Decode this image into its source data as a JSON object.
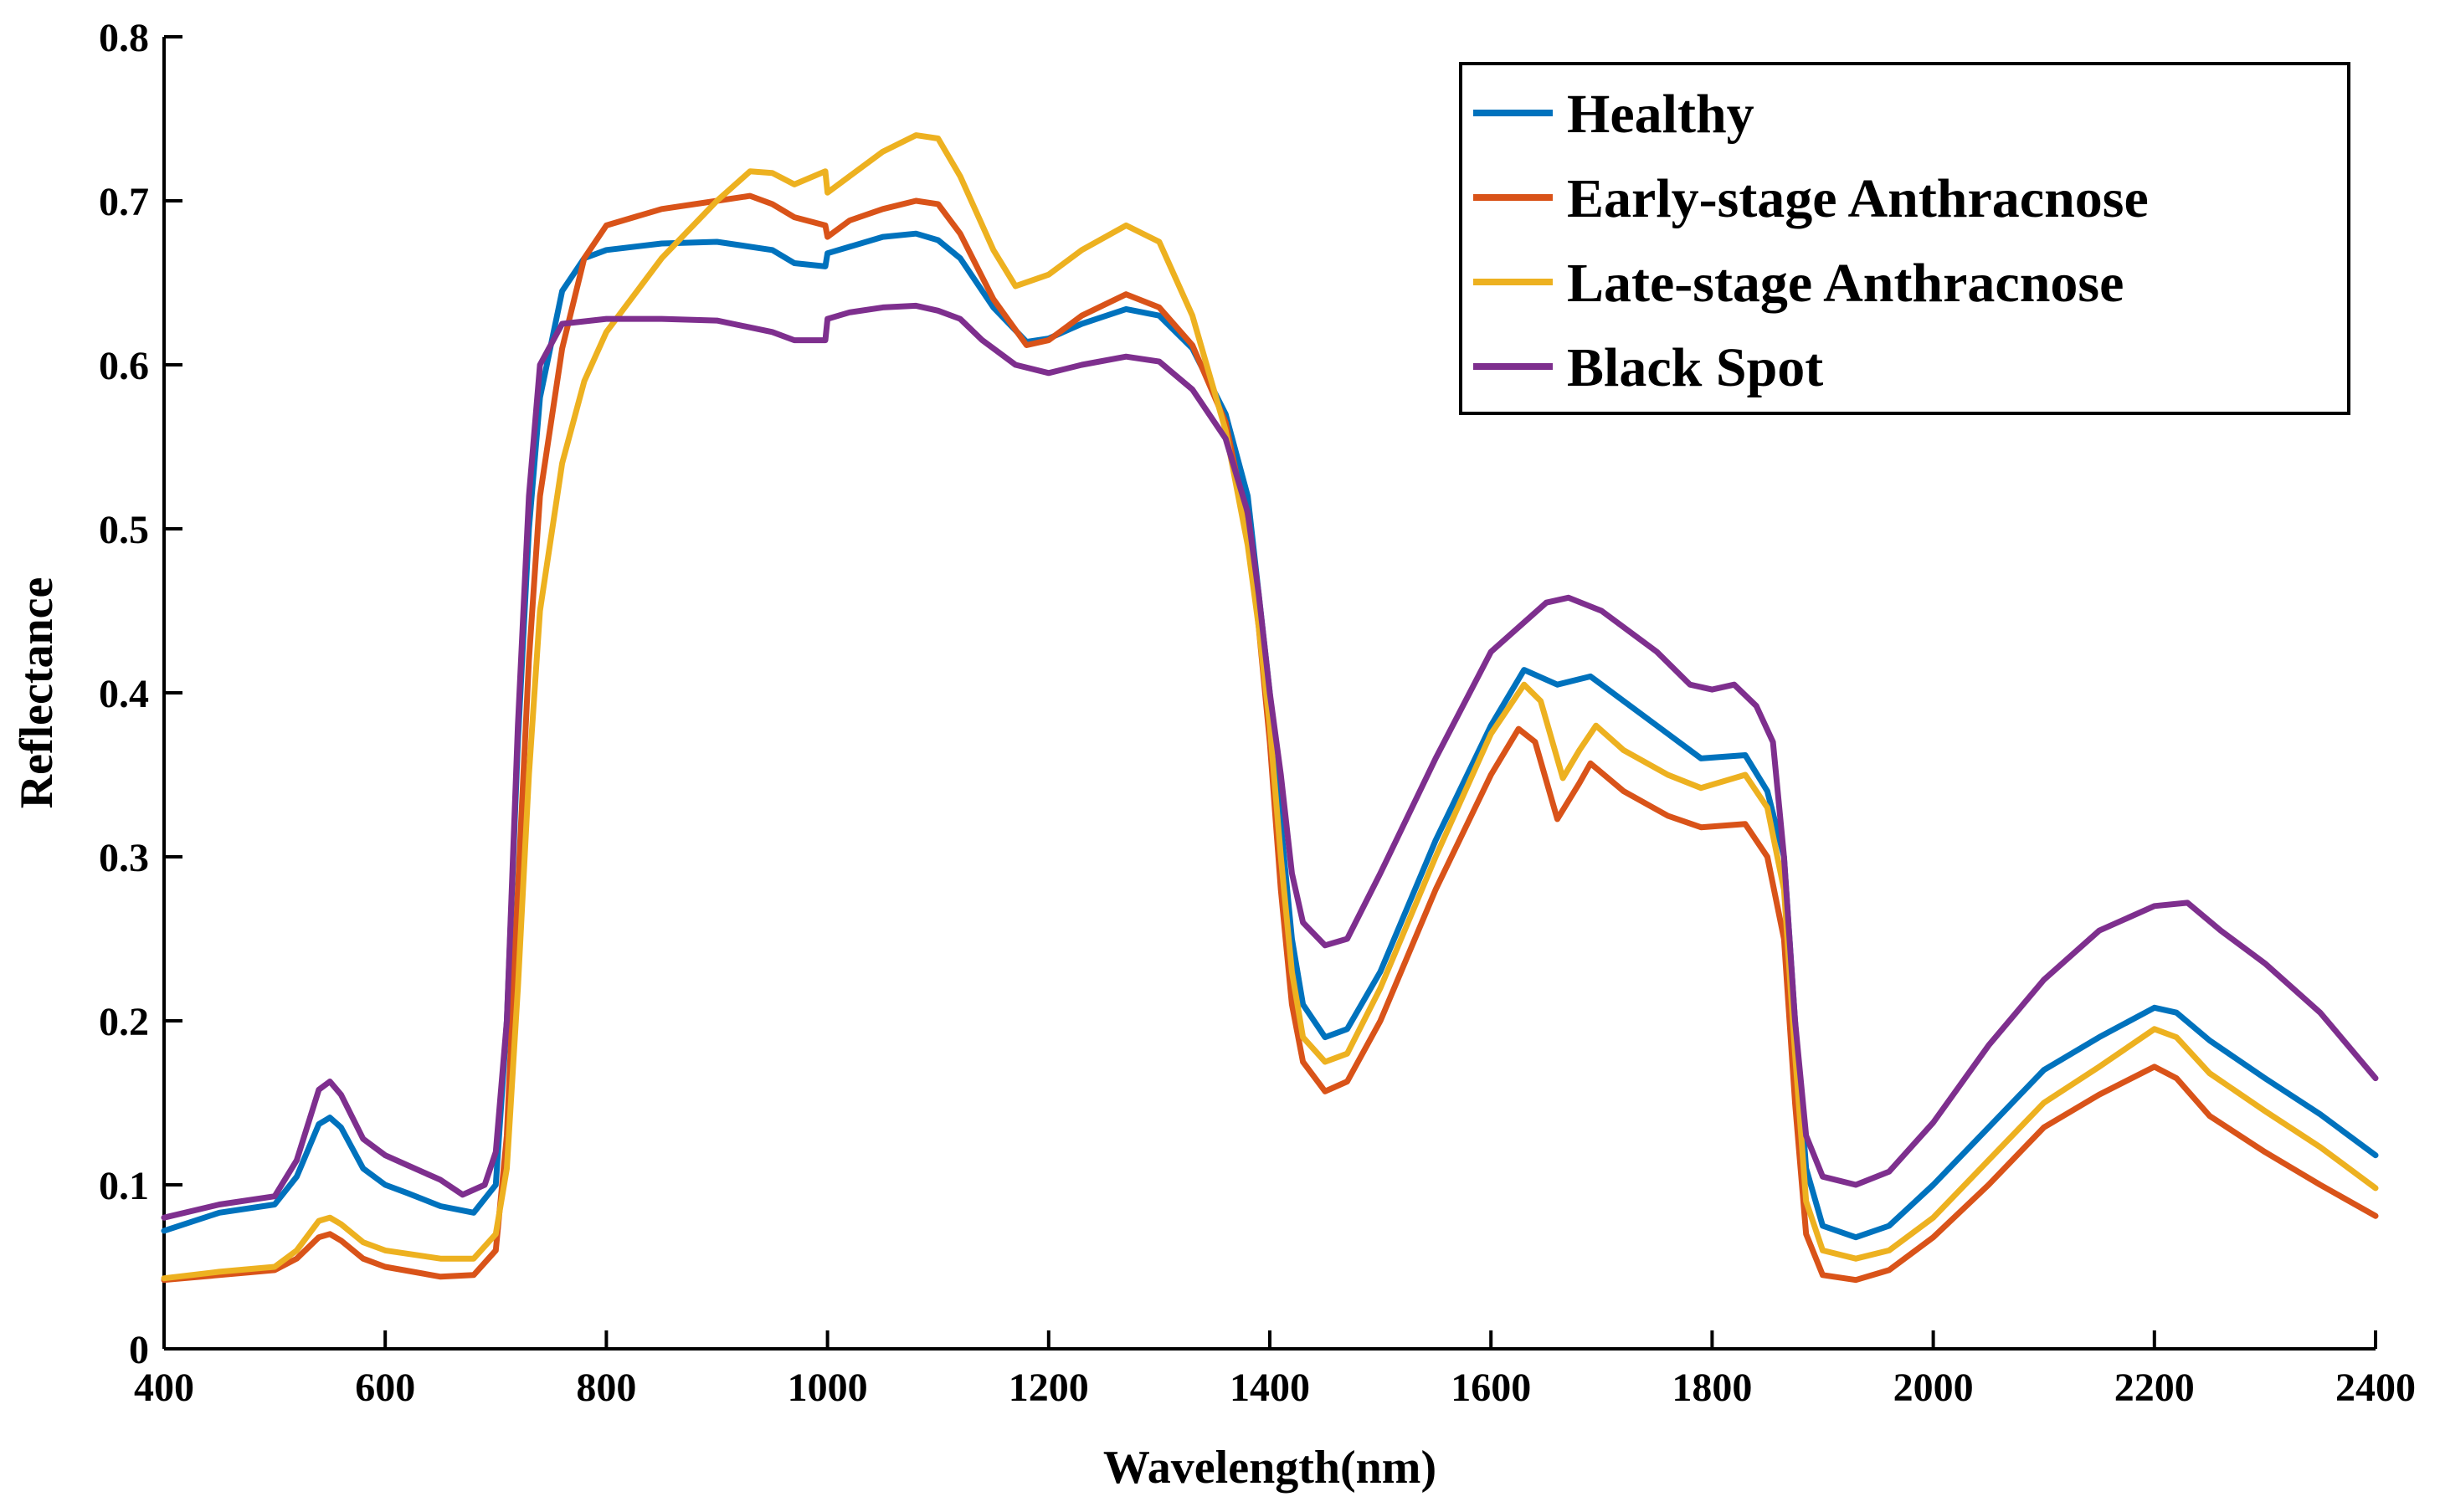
{
  "chart_data": {
    "type": "line",
    "title": "",
    "xlabel": "Wavelength(nm)",
    "ylabel": "Reflectance",
    "xlim": [
      400,
      2400
    ],
    "ylim": [
      0,
      0.8
    ],
    "xticks": [
      400,
      600,
      800,
      1000,
      1200,
      1400,
      1600,
      1800,
      2000,
      2200,
      2400
    ],
    "xtick_labels": [
      "400",
      "600",
      "800",
      "1000",
      "1200",
      "1400",
      "1600",
      "1800",
      "2000",
      "2200",
      "2400"
    ],
    "yticks": [
      0,
      0.1,
      0.2,
      0.3,
      0.4,
      0.5,
      0.6,
      0.7,
      0.8
    ],
    "ytick_labels": [
      "0",
      "0.1",
      "0.2",
      "0.3",
      "0.4",
      "0.5",
      "0.6",
      "0.7",
      "0.8"
    ],
    "grid": false,
    "legend_position": "top-right",
    "series": [
      {
        "name": "Healthy",
        "color": "#0072BD",
        "points": [
          [
            400,
            0.072
          ],
          [
            450,
            0.083
          ],
          [
            500,
            0.088
          ],
          [
            520,
            0.105
          ],
          [
            540,
            0.137
          ],
          [
            550,
            0.141
          ],
          [
            560,
            0.135
          ],
          [
            580,
            0.11
          ],
          [
            600,
            0.1
          ],
          [
            620,
            0.095
          ],
          [
            650,
            0.087
          ],
          [
            680,
            0.083
          ],
          [
            700,
            0.1
          ],
          [
            710,
            0.2
          ],
          [
            720,
            0.37
          ],
          [
            730,
            0.5
          ],
          [
            740,
            0.58
          ],
          [
            760,
            0.645
          ],
          [
            780,
            0.665
          ],
          [
            800,
            0.67
          ],
          [
            850,
            0.674
          ],
          [
            900,
            0.675
          ],
          [
            950,
            0.67
          ],
          [
            970,
            0.662
          ],
          [
            998,
            0.66
          ],
          [
            1000,
            0.668
          ],
          [
            1020,
            0.672
          ],
          [
            1050,
            0.678
          ],
          [
            1080,
            0.68
          ],
          [
            1100,
            0.676
          ],
          [
            1120,
            0.665
          ],
          [
            1150,
            0.635
          ],
          [
            1180,
            0.614
          ],
          [
            1200,
            0.616
          ],
          [
            1230,
            0.625
          ],
          [
            1270,
            0.634
          ],
          [
            1300,
            0.63
          ],
          [
            1330,
            0.61
          ],
          [
            1360,
            0.57
          ],
          [
            1380,
            0.52
          ],
          [
            1390,
            0.46
          ],
          [
            1400,
            0.4
          ],
          [
            1410,
            0.32
          ],
          [
            1420,
            0.25
          ],
          [
            1430,
            0.21
          ],
          [
            1450,
            0.19
          ],
          [
            1470,
            0.195
          ],
          [
            1500,
            0.23
          ],
          [
            1550,
            0.31
          ],
          [
            1600,
            0.38
          ],
          [
            1630,
            0.414
          ],
          [
            1660,
            0.405
          ],
          [
            1690,
            0.41
          ],
          [
            1720,
            0.395
          ],
          [
            1760,
            0.375
          ],
          [
            1790,
            0.36
          ],
          [
            1830,
            0.362
          ],
          [
            1850,
            0.34
          ],
          [
            1865,
            0.3
          ],
          [
            1875,
            0.2
          ],
          [
            1885,
            0.11
          ],
          [
            1900,
            0.075
          ],
          [
            1930,
            0.068
          ],
          [
            1960,
            0.075
          ],
          [
            2000,
            0.1
          ],
          [
            2050,
            0.135
          ],
          [
            2100,
            0.17
          ],
          [
            2150,
            0.19
          ],
          [
            2200,
            0.208
          ],
          [
            2220,
            0.205
          ],
          [
            2250,
            0.188
          ],
          [
            2300,
            0.165
          ],
          [
            2350,
            0.143
          ],
          [
            2400,
            0.118
          ]
        ]
      },
      {
        "name": "Early-stage Anthracnose",
        "color": "#D95319",
        "points": [
          [
            400,
            0.042
          ],
          [
            450,
            0.045
          ],
          [
            500,
            0.048
          ],
          [
            520,
            0.055
          ],
          [
            540,
            0.068
          ],
          [
            550,
            0.07
          ],
          [
            560,
            0.066
          ],
          [
            580,
            0.055
          ],
          [
            600,
            0.05
          ],
          [
            650,
            0.044
          ],
          [
            680,
            0.045
          ],
          [
            700,
            0.06
          ],
          [
            710,
            0.13
          ],
          [
            720,
            0.28
          ],
          [
            730,
            0.42
          ],
          [
            740,
            0.52
          ],
          [
            760,
            0.61
          ],
          [
            780,
            0.665
          ],
          [
            800,
            0.685
          ],
          [
            850,
            0.695
          ],
          [
            900,
            0.7
          ],
          [
            930,
            0.703
          ],
          [
            950,
            0.698
          ],
          [
            970,
            0.69
          ],
          [
            998,
            0.685
          ],
          [
            1000,
            0.678
          ],
          [
            1020,
            0.688
          ],
          [
            1050,
            0.695
          ],
          [
            1080,
            0.7
          ],
          [
            1100,
            0.698
          ],
          [
            1120,
            0.68
          ],
          [
            1150,
            0.64
          ],
          [
            1180,
            0.612
          ],
          [
            1200,
            0.615
          ],
          [
            1230,
            0.63
          ],
          [
            1270,
            0.643
          ],
          [
            1300,
            0.635
          ],
          [
            1330,
            0.612
          ],
          [
            1360,
            0.565
          ],
          [
            1380,
            0.5
          ],
          [
            1390,
            0.44
          ],
          [
            1400,
            0.37
          ],
          [
            1410,
            0.28
          ],
          [
            1420,
            0.21
          ],
          [
            1430,
            0.175
          ],
          [
            1450,
            0.157
          ],
          [
            1470,
            0.163
          ],
          [
            1500,
            0.2
          ],
          [
            1550,
            0.28
          ],
          [
            1600,
            0.35
          ],
          [
            1625,
            0.378
          ],
          [
            1640,
            0.37
          ],
          [
            1660,
            0.323
          ],
          [
            1680,
            0.345
          ],
          [
            1690,
            0.357
          ],
          [
            1720,
            0.34
          ],
          [
            1760,
            0.325
          ],
          [
            1790,
            0.318
          ],
          [
            1830,
            0.32
          ],
          [
            1850,
            0.3
          ],
          [
            1865,
            0.25
          ],
          [
            1875,
            0.15
          ],
          [
            1885,
            0.07
          ],
          [
            1900,
            0.045
          ],
          [
            1930,
            0.042
          ],
          [
            1960,
            0.048
          ],
          [
            2000,
            0.068
          ],
          [
            2050,
            0.1
          ],
          [
            2100,
            0.135
          ],
          [
            2150,
            0.155
          ],
          [
            2200,
            0.172
          ],
          [
            2220,
            0.165
          ],
          [
            2250,
            0.142
          ],
          [
            2300,
            0.12
          ],
          [
            2350,
            0.1
          ],
          [
            2400,
            0.081
          ]
        ]
      },
      {
        "name": "Late-stage Anthracnose",
        "color": "#EDB120",
        "points": [
          [
            400,
            0.043
          ],
          [
            450,
            0.047
          ],
          [
            500,
            0.05
          ],
          [
            520,
            0.06
          ],
          [
            540,
            0.078
          ],
          [
            550,
            0.08
          ],
          [
            560,
            0.076
          ],
          [
            580,
            0.065
          ],
          [
            600,
            0.06
          ],
          [
            650,
            0.055
          ],
          [
            680,
            0.055
          ],
          [
            700,
            0.07
          ],
          [
            710,
            0.11
          ],
          [
            720,
            0.22
          ],
          [
            730,
            0.35
          ],
          [
            740,
            0.45
          ],
          [
            760,
            0.54
          ],
          [
            780,
            0.59
          ],
          [
            800,
            0.62
          ],
          [
            850,
            0.665
          ],
          [
            900,
            0.7
          ],
          [
            930,
            0.718
          ],
          [
            950,
            0.717
          ],
          [
            970,
            0.71
          ],
          [
            998,
            0.718
          ],
          [
            1000,
            0.705
          ],
          [
            1020,
            0.715
          ],
          [
            1050,
            0.73
          ],
          [
            1080,
            0.74
          ],
          [
            1100,
            0.738
          ],
          [
            1120,
            0.715
          ],
          [
            1150,
            0.67
          ],
          [
            1170,
            0.648
          ],
          [
            1200,
            0.655
          ],
          [
            1230,
            0.67
          ],
          [
            1270,
            0.685
          ],
          [
            1300,
            0.675
          ],
          [
            1330,
            0.63
          ],
          [
            1360,
            0.56
          ],
          [
            1380,
            0.49
          ],
          [
            1390,
            0.44
          ],
          [
            1400,
            0.38
          ],
          [
            1410,
            0.3
          ],
          [
            1420,
            0.23
          ],
          [
            1430,
            0.19
          ],
          [
            1450,
            0.175
          ],
          [
            1470,
            0.18
          ],
          [
            1500,
            0.22
          ],
          [
            1550,
            0.3
          ],
          [
            1600,
            0.375
          ],
          [
            1630,
            0.405
          ],
          [
            1645,
            0.395
          ],
          [
            1665,
            0.348
          ],
          [
            1680,
            0.365
          ],
          [
            1695,
            0.38
          ],
          [
            1720,
            0.365
          ],
          [
            1760,
            0.35
          ],
          [
            1790,
            0.342
          ],
          [
            1830,
            0.35
          ],
          [
            1850,
            0.33
          ],
          [
            1865,
            0.28
          ],
          [
            1875,
            0.18
          ],
          [
            1885,
            0.09
          ],
          [
            1900,
            0.06
          ],
          [
            1930,
            0.055
          ],
          [
            1960,
            0.06
          ],
          [
            2000,
            0.08
          ],
          [
            2050,
            0.115
          ],
          [
            2100,
            0.15
          ],
          [
            2150,
            0.172
          ],
          [
            2200,
            0.195
          ],
          [
            2220,
            0.19
          ],
          [
            2250,
            0.168
          ],
          [
            2300,
            0.145
          ],
          [
            2350,
            0.123
          ],
          [
            2400,
            0.098
          ]
        ]
      },
      {
        "name": "Black Spot",
        "color": "#7E2F8E",
        "points": [
          [
            400,
            0.08
          ],
          [
            450,
            0.088
          ],
          [
            500,
            0.093
          ],
          [
            520,
            0.115
          ],
          [
            540,
            0.158
          ],
          [
            550,
            0.163
          ],
          [
            560,
            0.155
          ],
          [
            580,
            0.128
          ],
          [
            600,
            0.118
          ],
          [
            620,
            0.112
          ],
          [
            650,
            0.103
          ],
          [
            670,
            0.094
          ],
          [
            690,
            0.1
          ],
          [
            700,
            0.12
          ],
          [
            710,
            0.2
          ],
          [
            720,
            0.38
          ],
          [
            730,
            0.52
          ],
          [
            740,
            0.6
          ],
          [
            760,
            0.625
          ],
          [
            800,
            0.628
          ],
          [
            850,
            0.628
          ],
          [
            900,
            0.627
          ],
          [
            950,
            0.62
          ],
          [
            970,
            0.615
          ],
          [
            998,
            0.615
          ],
          [
            1000,
            0.628
          ],
          [
            1020,
            0.632
          ],
          [
            1050,
            0.635
          ],
          [
            1080,
            0.636
          ],
          [
            1100,
            0.633
          ],
          [
            1120,
            0.628
          ],
          [
            1140,
            0.615
          ],
          [
            1170,
            0.6
          ],
          [
            1200,
            0.595
          ],
          [
            1230,
            0.6
          ],
          [
            1270,
            0.605
          ],
          [
            1300,
            0.602
          ],
          [
            1330,
            0.585
          ],
          [
            1360,
            0.555
          ],
          [
            1380,
            0.51
          ],
          [
            1390,
            0.46
          ],
          [
            1400,
            0.4
          ],
          [
            1410,
            0.35
          ],
          [
            1420,
            0.29
          ],
          [
            1430,
            0.26
          ],
          [
            1450,
            0.246
          ],
          [
            1470,
            0.25
          ],
          [
            1500,
            0.29
          ],
          [
            1550,
            0.36
          ],
          [
            1600,
            0.425
          ],
          [
            1650,
            0.455
          ],
          [
            1670,
            0.458
          ],
          [
            1700,
            0.45
          ],
          [
            1750,
            0.425
          ],
          [
            1780,
            0.405
          ],
          [
            1800,
            0.402
          ],
          [
            1820,
            0.405
          ],
          [
            1840,
            0.392
          ],
          [
            1855,
            0.37
          ],
          [
            1865,
            0.3
          ],
          [
            1875,
            0.2
          ],
          [
            1885,
            0.13
          ],
          [
            1900,
            0.105
          ],
          [
            1930,
            0.1
          ],
          [
            1960,
            0.108
          ],
          [
            2000,
            0.138
          ],
          [
            2050,
            0.185
          ],
          [
            2100,
            0.225
          ],
          [
            2150,
            0.255
          ],
          [
            2200,
            0.27
          ],
          [
            2230,
            0.272
          ],
          [
            2260,
            0.255
          ],
          [
            2300,
            0.235
          ],
          [
            2350,
            0.205
          ],
          [
            2400,
            0.165
          ]
        ]
      }
    ]
  }
}
